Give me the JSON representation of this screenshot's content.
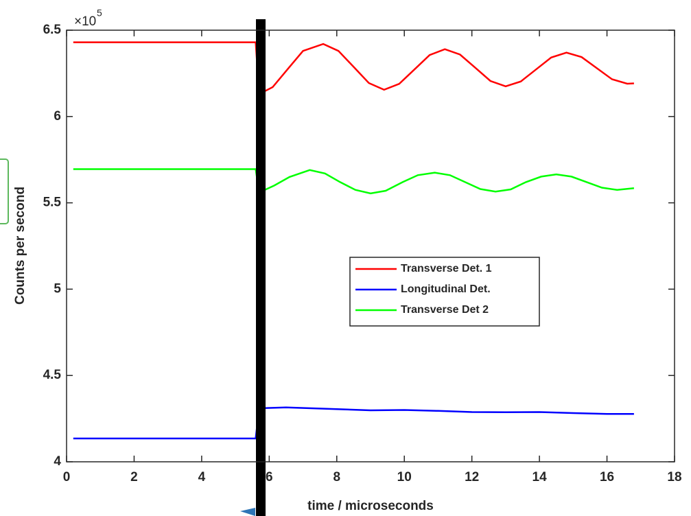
{
  "chart_data": {
    "type": "line",
    "xlabel": "time / microseconds",
    "ylabel": "Counts per second",
    "y_multiplier": "×10",
    "y_multiplier_exponent": "5",
    "xlim": [
      0,
      18
    ],
    "xticks": [
      0,
      2,
      4,
      6,
      8,
      10,
      12,
      14,
      16,
      18
    ],
    "ylim": [
      4,
      6.5
    ],
    "yticks": [
      4,
      4.5,
      5,
      5.5,
      6,
      6.5
    ],
    "legend": "center",
    "series": [
      {
        "name": "Transverse Det. 1",
        "color": "#ff0000",
        "x": [
          0.2,
          5.6,
          5.7,
          6.1,
          6.55,
          7.0,
          7.6,
          8.05,
          8.5,
          8.95,
          9.4,
          9.85,
          10.3,
          10.75,
          11.2,
          11.65,
          12.1,
          12.55,
          13.0,
          13.45,
          13.9,
          14.35,
          14.8,
          15.25,
          15.7,
          16.15,
          16.6,
          16.8
        ],
        "values": [
          6.43,
          6.43,
          6.13,
          6.17,
          6.275,
          6.38,
          6.42,
          6.38,
          6.2875,
          6.194,
          6.155,
          6.189,
          6.2725,
          6.356,
          6.39,
          6.359,
          6.2825,
          6.206,
          6.175,
          6.203,
          6.2725,
          6.342,
          6.37,
          6.344,
          6.28,
          6.216,
          6.19,
          6.192
        ]
      },
      {
        "name": "Longitudinal Det.",
        "color": "#0000ff",
        "x": [
          0.2,
          5.6,
          5.7,
          6.5,
          8,
          9,
          10,
          11,
          12,
          13,
          14,
          15,
          16,
          16.8
        ],
        "values": [
          4.135,
          4.135,
          4.31,
          4.315,
          4.305,
          4.298,
          4.3,
          4.295,
          4.288,
          4.287,
          4.288,
          4.282,
          4.277,
          4.277
        ]
      },
      {
        "name": "Transverse Det 2",
        "color": "#00ff00",
        "x": [
          0.2,
          5.6,
          5.7,
          6.15,
          6.6,
          7.2,
          7.65,
          8.1,
          8.55,
          9.0,
          9.45,
          9.95,
          10.4,
          10.9,
          11.35,
          11.8,
          12.25,
          12.7,
          13.15,
          13.6,
          14.05,
          14.5,
          14.95,
          15.4,
          15.85,
          16.3,
          16.8
        ],
        "values": [
          5.695,
          5.695,
          5.56,
          5.6,
          5.65,
          5.69,
          5.67,
          5.62,
          5.575,
          5.555,
          5.57,
          5.62,
          5.66,
          5.675,
          5.66,
          5.62,
          5.58,
          5.565,
          5.578,
          5.62,
          5.652,
          5.665,
          5.652,
          5.62,
          5.588,
          5.575,
          5.585
        ]
      }
    ]
  }
}
